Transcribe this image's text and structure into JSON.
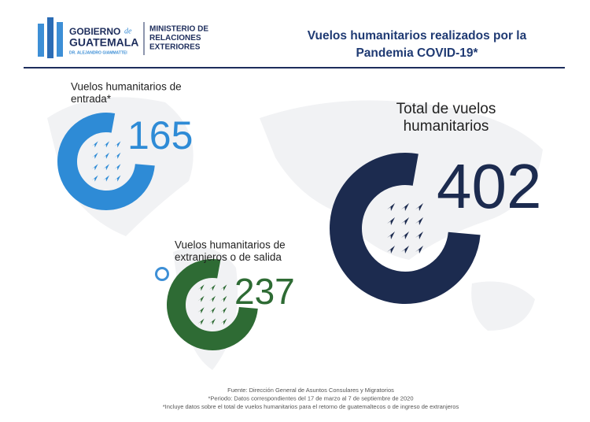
{
  "header": {
    "logo": {
      "line1": "GOBIERNO",
      "line1_small": "de",
      "line2": "GUATEMALA",
      "line3": "DR. ALEJANDRO GIAMMATTEI"
    },
    "ministry": [
      "MINISTERIO DE",
      "RELACIONES",
      "EXTERIORES"
    ],
    "title": [
      "Vuelos humanitarios realizados por la",
      "Pandemia COVID-19*"
    ]
  },
  "sections": [
    {
      "label": [
        "Vuelos humanitarios de",
        "entrada*"
      ],
      "value": "165"
    },
    {
      "label": [
        "Vuelos humanitarios de",
        "extranjeros o de salida"
      ],
      "value": "237"
    },
    {
      "label": [
        "Total de vuelos",
        "humanitarios"
      ],
      "value": "402"
    }
  ],
  "footer": [
    "Fuente: Dirección General de Asuntos Consulares y Migratorios",
    "*Periodo: Datos correspondientes del 17 de marzo al 7 de septiembre de 2020",
    "*Incluye datos sobre el total de vuelos humanitarios para el retorno de guatemaltecos o de ingreso de extranjeros"
  ]
}
